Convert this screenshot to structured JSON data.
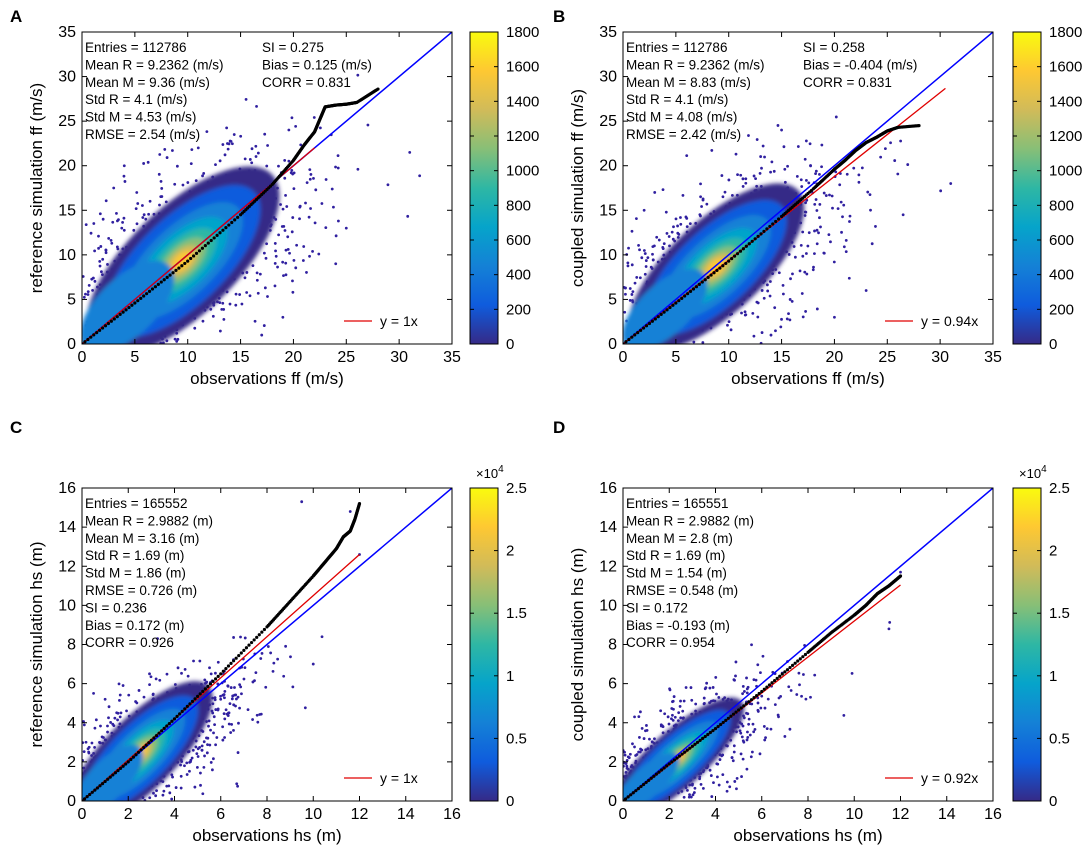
{
  "colors": {
    "one_to_one_line": "#0000ff",
    "fit_line": "#e00000",
    "quantile_points": "#000000",
    "scatter_outlier": "#3020a0",
    "colormap": [
      "#352a87",
      "#0f5cdd",
      "#1481d6",
      "#06a4ca",
      "#2eb7a4",
      "#87bf77",
      "#d1bb59",
      "#fec832",
      "#f9fb0e"
    ]
  },
  "chart_data": [
    {
      "panel": "A",
      "type": "scatter",
      "xlabel": "observations ff (m/s)",
      "ylabel": "reference simulation  ff (m/s)",
      "xlim": [
        0,
        35
      ],
      "ylim": [
        0,
        35
      ],
      "xticks": [
        "0",
        "5",
        "10",
        "15",
        "20",
        "25",
        "30",
        "35"
      ],
      "yticks": [
        "0",
        "5",
        "10",
        "15",
        "20",
        "25",
        "30",
        "35"
      ],
      "colorbar": {
        "range": [
          0,
          1800
        ],
        "ticks": [
          "0",
          "200",
          "400",
          "600",
          "800",
          "1000",
          "1200",
          "1400",
          "1600",
          "1800"
        ],
        "multiplier": ""
      },
      "stats_left": [
        "Entries = 112786",
        "Mean R = 9.2362 (m/s)",
        "Mean M = 9.36 (m/s)",
        "Std R = 4.1 (m/s)",
        "Std M = 4.53 (m/s)",
        "RMSE = 2.54 (m/s)"
      ],
      "stats_right": [
        "SI = 0.275",
        "Bias = 0.125 (m/s)",
        "CORR = 0.831"
      ],
      "legend": "y = 1x",
      "fit_slope": 1.0,
      "fit_end": 22,
      "qq": {
        "x": [
          0,
          5,
          10,
          15,
          18,
          20,
          21,
          22,
          22.5,
          23,
          24,
          25,
          26,
          28
        ],
        "y": [
          0,
          4.6,
          9.3,
          14.5,
          17.9,
          20.6,
          22.3,
          23.8,
          25.2,
          26.6,
          26.8,
          26.9,
          27.1,
          28.6
        ]
      },
      "core": {
        "center": [
          9.5,
          9.3
        ],
        "angle": 44,
        "spread": 6.2,
        "width": 2.3
      },
      "outliers": [
        [
          31,
          21.5
        ],
        [
          2,
          14
        ],
        [
          25,
          13
        ],
        [
          3,
          17.5
        ],
        [
          19,
          3
        ],
        [
          17,
          1
        ],
        [
          11,
          22
        ],
        [
          4,
          20
        ],
        [
          24,
          9
        ]
      ]
    },
    {
      "panel": "B",
      "type": "scatter",
      "xlabel": "observations ff (m/s)",
      "ylabel": "coupled simulation  ff (m/s)",
      "xlim": [
        0,
        35
      ],
      "ylim": [
        0,
        35
      ],
      "xticks": [
        "0",
        "5",
        "10",
        "15",
        "20",
        "25",
        "30",
        "35"
      ],
      "yticks": [
        "0",
        "5",
        "10",
        "15",
        "20",
        "25",
        "30",
        "35"
      ],
      "colorbar": {
        "range": [
          0,
          1800
        ],
        "ticks": [
          "0",
          "200",
          "400",
          "600",
          "800",
          "1000",
          "1200",
          "1400",
          "1600",
          "1800"
        ],
        "multiplier": ""
      },
      "stats_left": [
        "Entries = 112786",
        "Mean R = 9.2362 (m/s)",
        "Mean M = 8.83 (m/s)",
        "Std R = 4.1 (m/s)",
        "Std M = 4.08 (m/s)",
        "RMSE = 2.42 (m/s)"
      ],
      "stats_right": [
        "SI = 0.258",
        "Bias = -0.404 (m/s)",
        "CORR = 0.831"
      ],
      "legend": "y = 0.94x",
      "fit_slope": 0.94,
      "fit_end": 30.5,
      "qq": {
        "x": [
          0,
          5,
          10,
          15,
          18,
          20,
          21,
          22,
          23,
          24,
          25,
          26,
          28
        ],
        "y": [
          0,
          4.6,
          9.3,
          14.3,
          17.4,
          19.6,
          20.6,
          21.7,
          22.6,
          23.2,
          23.9,
          24.3,
          24.5
        ]
      },
      "core": {
        "center": [
          8.8,
          8.6
        ],
        "angle": 43,
        "spread": 5.6,
        "width": 2.0
      },
      "outliers": [
        [
          31,
          18
        ],
        [
          26.5,
          14.5
        ],
        [
          2,
          15
        ],
        [
          3,
          17
        ],
        [
          20,
          3
        ],
        [
          23,
          6
        ],
        [
          15,
          24
        ],
        [
          14,
          1
        ]
      ]
    },
    {
      "panel": "C",
      "type": "scatter",
      "xlabel": "observations hs (m)",
      "ylabel": "reference simulation  hs (m)",
      "xlim": [
        0,
        16
      ],
      "ylim": [
        0,
        16
      ],
      "xticks": [
        "0",
        "2",
        "4",
        "6",
        "8",
        "10",
        "12",
        "14",
        "16"
      ],
      "yticks": [
        "0",
        "2",
        "4",
        "6",
        "8",
        "10",
        "12",
        "14",
        "16"
      ],
      "colorbar": {
        "range": [
          0,
          2.5
        ],
        "ticks": [
          "0",
          "0.5",
          "1",
          "1.5",
          "2",
          "2.5"
        ],
        "multiplier": "×10",
        "multiplier_exp": "4"
      },
      "stats_left": [
        "Entries = 165552",
        "Mean R = 2.9882 (m)",
        "Mean M = 3.16 (m)",
        "Std R = 1.69 (m)",
        "Std M = 1.86 (m)",
        "RMSE = 0.726 (m)",
        "SI = 0.236",
        "Bias = 0.172 (m)",
        "CORR = 0.926"
      ],
      "stats_right": [],
      "legend": "y = 1x",
      "fit_slope": 1.05,
      "fit_end": 12,
      "qq": {
        "x": [
          0,
          2,
          4,
          6,
          8,
          9,
          10,
          10.5,
          11,
          11.3,
          11.6,
          11.8,
          12
        ],
        "y": [
          0,
          2,
          4.2,
          6.5,
          8.9,
          10.2,
          11.5,
          12.2,
          12.9,
          13.5,
          13.8,
          14.4,
          15.2
        ]
      },
      "core": {
        "center": [
          2.5,
          2.4
        ],
        "angle": 45,
        "spread": 2.2,
        "width": 0.7
      },
      "outliers": [
        [
          9.5,
          15.3
        ],
        [
          0.5,
          5.5
        ],
        [
          1,
          5.2
        ],
        [
          3,
          1
        ],
        [
          10,
          7
        ],
        [
          12,
          12.6
        ],
        [
          11.6,
          14.8
        ]
      ]
    },
    {
      "panel": "D",
      "type": "scatter",
      "xlabel": "observations hs (m)",
      "ylabel": "coupled simulation  hs (m)",
      "xlim": [
        0,
        16
      ],
      "ylim": [
        0,
        16
      ],
      "xticks": [
        "0",
        "2",
        "4",
        "6",
        "8",
        "10",
        "12",
        "14",
        "16"
      ],
      "yticks": [
        "0",
        "2",
        "4",
        "6",
        "8",
        "10",
        "12",
        "14",
        "16"
      ],
      "colorbar": {
        "range": [
          0,
          2.5
        ],
        "ticks": [
          "0",
          "0.5",
          "1",
          "1.5",
          "2",
          "2.5"
        ],
        "multiplier": "×10",
        "multiplier_exp": "4"
      },
      "stats_left": [
        "Entries = 165551",
        "Mean R = 2.9882 (m)",
        "Mean M = 2.8 (m)",
        "Std R = 1.69 (m)",
        "Std M = 1.54 (m)",
        "RMSE = 0.548 (m)",
        "SI = 0.172",
        "Bias = -0.193 (m)",
        "CORR = 0.954"
      ],
      "stats_right": [],
      "legend": "y = 0.92x",
      "fit_slope": 0.92,
      "fit_end": 12,
      "qq": {
        "x": [
          0,
          2,
          4,
          6,
          8,
          9,
          10,
          10.5,
          11,
          11.5,
          12
        ],
        "y": [
          0,
          1.9,
          3.7,
          5.6,
          7.6,
          8.6,
          9.5,
          10.0,
          10.6,
          11.0,
          11.5
        ]
      },
      "core": {
        "center": [
          2.3,
          2.1
        ],
        "angle": 42,
        "spread": 2.0,
        "width": 0.55
      },
      "outliers": [
        [
          12,
          11.7
        ],
        [
          0.5,
          4.3
        ],
        [
          4.5,
          0.5
        ],
        [
          7,
          3.3
        ],
        [
          11.5,
          8.8
        ]
      ]
    }
  ]
}
